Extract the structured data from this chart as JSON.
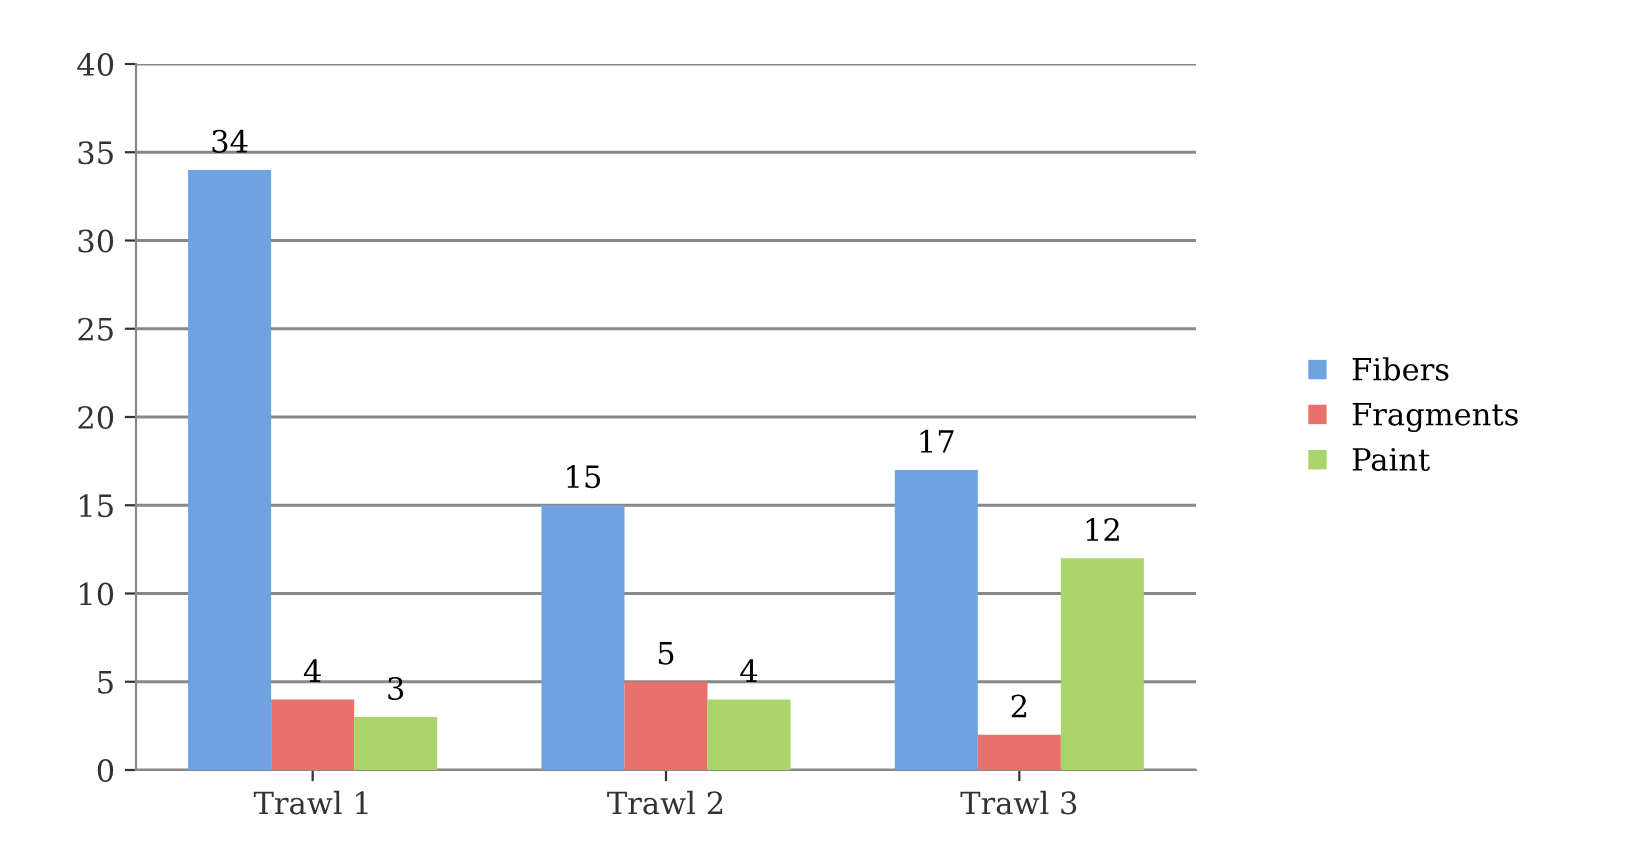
{
  "chart_data": {
    "type": "bar",
    "categories": [
      "Trawl 1",
      "Trawl 2",
      "Trawl 3"
    ],
    "series": [
      {
        "name": "Fibers",
        "color": "#6fa2e0",
        "values": [
          34,
          15,
          17
        ]
      },
      {
        "name": "Fragments",
        "color": "#e8716b",
        "values": [
          4,
          5,
          2
        ]
      },
      {
        "name": "Paint",
        "color": "#a9d56b",
        "values": [
          3,
          4,
          12
        ]
      }
    ],
    "ylim": [
      0,
      40
    ],
    "yticks": [
      0,
      5,
      10,
      15,
      20,
      25,
      30,
      35,
      40
    ],
    "grid": "y",
    "legend": "right",
    "data_labels": true
  }
}
